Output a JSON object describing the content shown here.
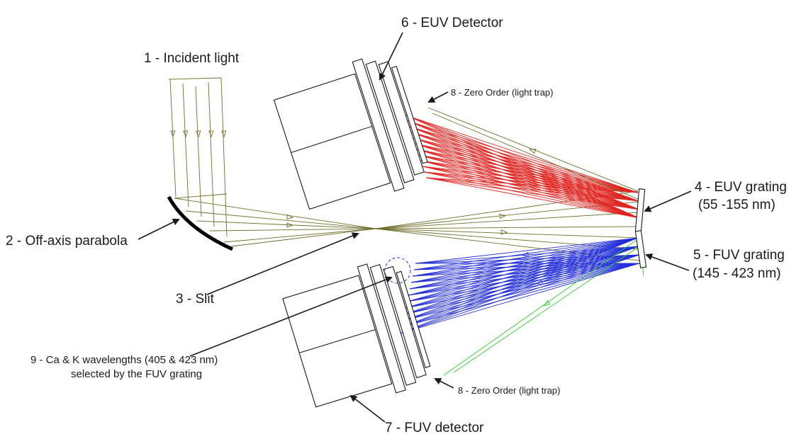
{
  "labels": {
    "incident_light": "1 - Incident light",
    "off_axis_parabola": "2 - Off-axis parabola",
    "slit": "3 - Slit",
    "euv_grating_line1": "4 - EUV grating",
    "euv_grating_line2": "(55 -155 nm)",
    "fuv_grating_line1": "5 - FUV grating",
    "fuv_grating_line2": "(145 - 423 nm)",
    "euv_detector": "6 - EUV Detector",
    "fuv_detector": "7 - FUV detector",
    "zero_order_top": "8 - Zero Order (light trap)",
    "zero_order_bottom": "8 - Zero Order (light trap)",
    "ca_k_line1": "9 - Ca & K wavelengths (405 & 423 nm)",
    "ca_k_line2": "selected by the FUV grating"
  },
  "colors": {
    "incident_rays": "#6e6e2c",
    "euv_rays": "#e0241f",
    "fuv_rays": "#2430d8",
    "zero_order_rays": "#2fcf2f",
    "outline": "#1a1a1a"
  }
}
